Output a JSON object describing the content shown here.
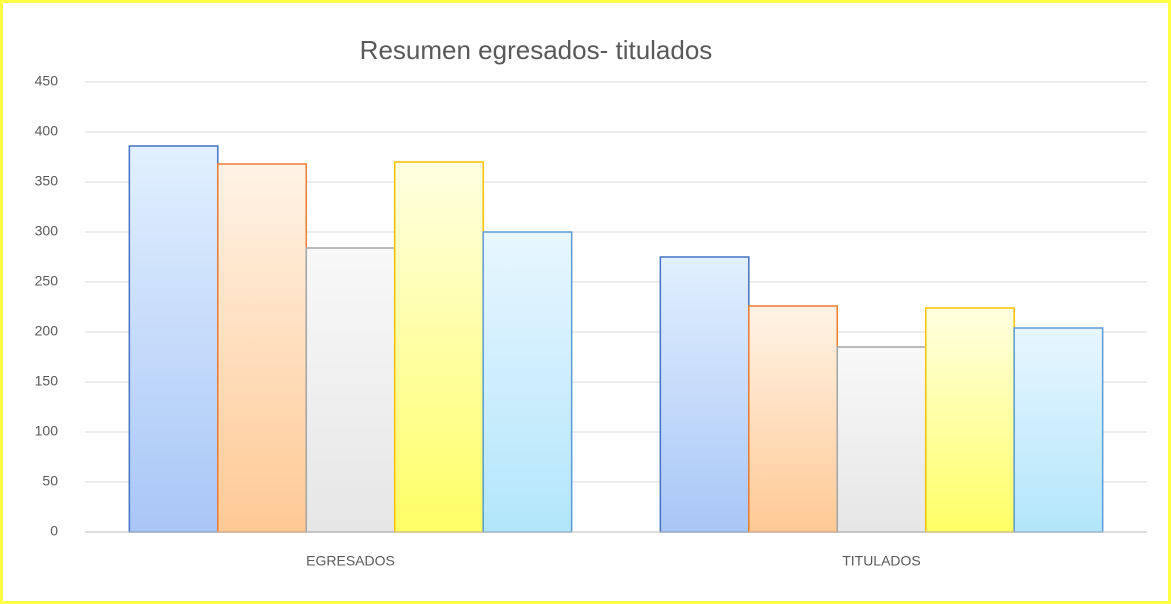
{
  "chart_data": {
    "type": "bar",
    "title": "Resumen egresados- titulados",
    "categories": [
      "EGRESADOS",
      "TITULADOS"
    ],
    "series": [
      {
        "color": "#4472c4",
        "gradient": [
          "#e2f0ff",
          "#a8c6f6"
        ],
        "values": [
          386,
          275
        ]
      },
      {
        "color": "#ed7d31",
        "gradient": [
          "#fff3e6",
          "#ffc994"
        ],
        "values": [
          368,
          226
        ]
      },
      {
        "color": "#a5a5a5",
        "gradient": [
          "#f8f8f8",
          "#e6e6e6"
        ],
        "values": [
          284,
          185
        ]
      },
      {
        "color": "#ffc000",
        "gradient": [
          "#ffffe2",
          "#ffff66"
        ],
        "values": [
          370,
          224
        ]
      },
      {
        "color": "#5b9bd5",
        "gradient": [
          "#e8f6ff",
          "#b2e6fb"
        ],
        "values": [
          300,
          204
        ]
      }
    ],
    "ylim": [
      0,
      450
    ],
    "yticks": [
      0,
      50,
      100,
      150,
      200,
      250,
      300,
      350,
      400,
      450
    ],
    "grid": true
  }
}
